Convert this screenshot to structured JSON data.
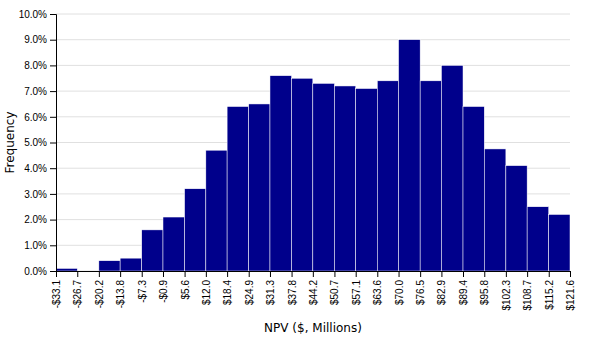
{
  "chart_data": {
    "type": "histogram",
    "x_label": "NPV ($, Millions)",
    "y_label": "Frequency",
    "bins": [
      -33.1,
      -26.7,
      -20.2,
      -13.8,
      -7.3,
      -0.9,
      5.6,
      12.0,
      18.4,
      24.9,
      31.3,
      37.8,
      44.2,
      50.7,
      57.1,
      63.6,
      70.0,
      76.5,
      82.9,
      89.4,
      95.8,
      102.3,
      108.7,
      115.2,
      121.6
    ],
    "values": [
      0.1,
      0.0,
      0.4,
      0.5,
      1.6,
      2.1,
      3.2,
      4.7,
      6.4,
      6.5,
      7.6,
      7.5,
      7.3,
      7.2,
      7.1,
      7.4,
      9.0,
      7.4,
      8.0,
      6.4,
      4.75,
      4.1,
      2.5,
      2.2
    ],
    "color": "#00008B",
    "xlim": [
      -33.1,
      121.6
    ],
    "xticks": [
      {
        "value": -33.1,
        "label": "-$33.1"
      },
      {
        "value": -26.7,
        "label": "-$26.7"
      },
      {
        "value": -20.2,
        "label": "-$20.2"
      },
      {
        "value": -13.8,
        "label": "-$13.8"
      },
      {
        "value": -7.3,
        "label": "-$7.3"
      },
      {
        "value": -0.9,
        "label": "-$0.9"
      },
      {
        "value": 5.6,
        "label": "$5.6"
      },
      {
        "value": 12.0,
        "label": "$12.0"
      },
      {
        "value": 18.4,
        "label": "$18.4"
      },
      {
        "value": 24.9,
        "label": "$24.9"
      },
      {
        "value": 31.3,
        "label": "$31.3"
      },
      {
        "value": 37.8,
        "label": "$37.8"
      },
      {
        "value": 44.2,
        "label": "$44.2"
      },
      {
        "value": 50.7,
        "label": "$50.7"
      },
      {
        "value": 57.1,
        "label": "$57.1"
      },
      {
        "value": 63.6,
        "label": "$63.6"
      },
      {
        "value": 70.0,
        "label": "$70.0"
      },
      {
        "value": 76.5,
        "label": "$76.5"
      },
      {
        "value": 82.9,
        "label": "$82.9"
      },
      {
        "value": 89.4,
        "label": "$89.4"
      },
      {
        "value": 95.8,
        "label": "$95.8"
      },
      {
        "value": 102.3,
        "label": "$102.3"
      },
      {
        "value": 108.7,
        "label": "$108.7"
      },
      {
        "value": 115.2,
        "label": "$115.2"
      },
      {
        "value": 121.6,
        "label": "$121.6"
      }
    ],
    "ylim": [
      0,
      10
    ],
    "yticks": [
      {
        "value": 0,
        "label": "0.0%"
      },
      {
        "value": 1,
        "label": "1.0%"
      },
      {
        "value": 2,
        "label": "2.0%"
      },
      {
        "value": 3,
        "label": "3.0%"
      },
      {
        "value": 4,
        "label": "4.0%"
      },
      {
        "value": 5,
        "label": "5.0%"
      },
      {
        "value": 6,
        "label": "6.0%"
      },
      {
        "value": 7,
        "label": "7.0%"
      },
      {
        "value": 8,
        "label": "8.0%"
      },
      {
        "value": 9,
        "label": "9.0%"
      },
      {
        "value": 10,
        "label": "10.0%"
      }
    ],
    "grid": true
  }
}
